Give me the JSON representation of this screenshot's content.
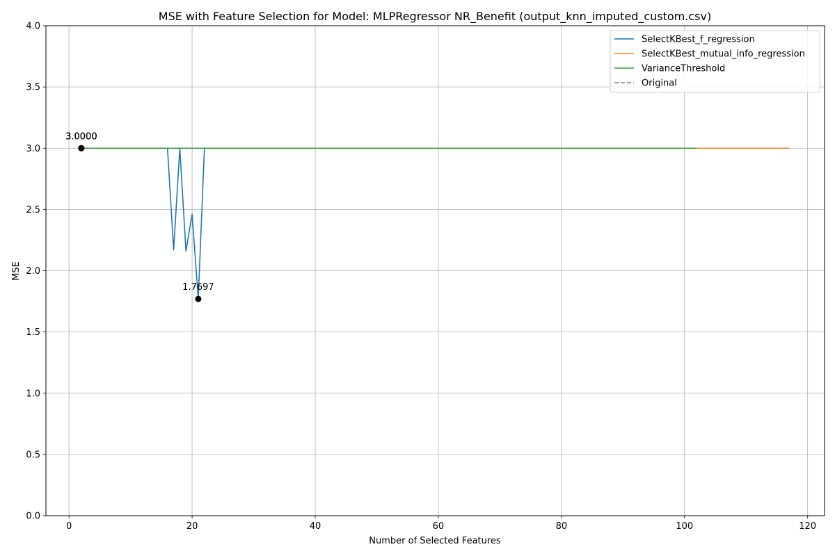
{
  "chart_data": {
    "type": "line",
    "title": "MSE with Feature Selection for Model: MLPRegressor NR_Benefit (output_knn_imputed_custom.csv)",
    "xlabel": "Number of Selected Features",
    "ylabel": "MSE",
    "xlim": [
      -3.75,
      122.75
    ],
    "ylim": [
      0,
      4
    ],
    "xticks": [
      0,
      20,
      40,
      60,
      80,
      100,
      120
    ],
    "yticks": [
      0.0,
      0.5,
      1.0,
      1.5,
      2.0,
      2.5,
      3.0,
      3.5,
      4.0
    ],
    "grid": true,
    "legend_position": "top-right",
    "series": [
      {
        "name": "SelectKBest_f_regression",
        "color": "#1f77b4",
        "style": "solid",
        "x": [
          2,
          16,
          17,
          18,
          19,
          20,
          21,
          22
        ],
        "y": [
          3.0,
          3.0,
          2.17,
          3.0,
          2.16,
          2.46,
          1.7697,
          3.0
        ]
      },
      {
        "name": "SelectKBest_mutual_info_regression",
        "color": "#ff7f0e",
        "style": "solid",
        "x": [
          2,
          117
        ],
        "y": [
          3.0,
          3.0
        ]
      },
      {
        "name": "VarianceThreshold",
        "color": "#2ca02c",
        "style": "solid",
        "x": [
          2,
          102
        ],
        "y": [
          3.0,
          3.0
        ]
      },
      {
        "name": "Original",
        "color": "#7f7f7f",
        "style": "dashed",
        "x": [],
        "y": []
      }
    ],
    "markers": [
      {
        "x": 2,
        "y": 3.0,
        "label": "3.0000"
      },
      {
        "x": 2,
        "y": 3.0,
        "label": "3.0000"
      },
      {
        "x": 2,
        "y": 3.0,
        "label": "3.0000"
      },
      {
        "x": 21,
        "y": 1.7697,
        "label": "1.7697"
      }
    ]
  }
}
